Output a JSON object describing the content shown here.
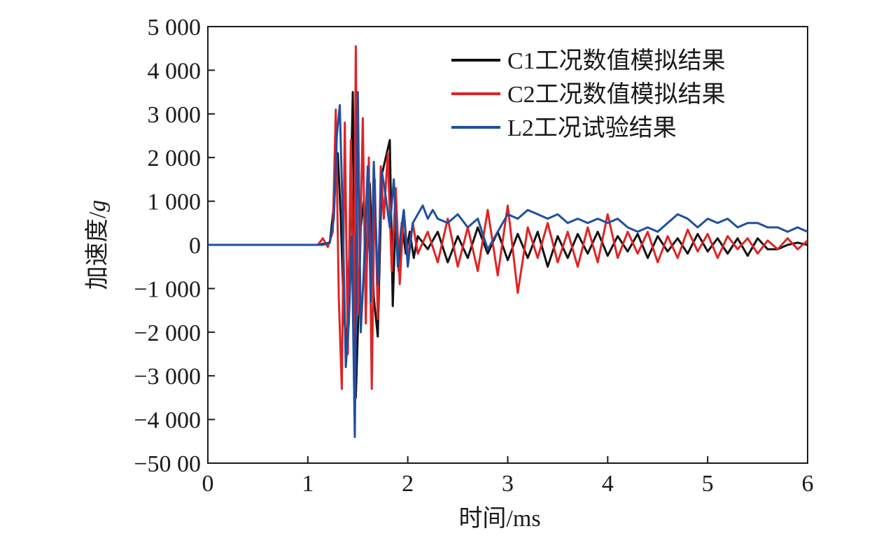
{
  "chart_data": {
    "type": "line",
    "title": "",
    "xlabel": "时间/ms",
    "ylabel_main": "加速度/",
    "ylabel_unit": "g",
    "xlim": [
      0,
      6
    ],
    "ylim": [
      -5000,
      5000
    ],
    "x_ticks": [
      0,
      1,
      2,
      3,
      4,
      5,
      6
    ],
    "x_tick_labels": [
      "0",
      "1",
      "2",
      "3",
      "4",
      "5",
      "6"
    ],
    "y_ticks": [
      5000,
      4000,
      3000,
      2000,
      1000,
      0,
      -1000,
      -2000,
      -3000,
      -4000,
      -5000
    ],
    "y_tick_labels": [
      "5 000",
      "4 000",
      "3 000",
      "2 000",
      "1 000",
      "0",
      "−1 000",
      "−2 000",
      "−3 000",
      "−4 000",
      "−50 00"
    ],
    "grid": false,
    "legend_position": "top-right",
    "series": [
      {
        "name": "C1工况数值模拟结果",
        "color": "#111111",
        "x": [
          0,
          1.1,
          1.22,
          1.26,
          1.3,
          1.33,
          1.36,
          1.39,
          1.42,
          1.45,
          1.48,
          1.5,
          1.53,
          1.56,
          1.59,
          1.62,
          1.66,
          1.7,
          1.74,
          1.78,
          1.82,
          1.85,
          1.88,
          1.91,
          1.94,
          1.98,
          2.02,
          2.06,
          2.1,
          2.2,
          2.3,
          2.4,
          2.5,
          2.6,
          2.7,
          2.8,
          2.9,
          3.0,
          3.1,
          3.2,
          3.3,
          3.4,
          3.5,
          3.6,
          3.7,
          3.8,
          3.9,
          4.0,
          4.1,
          4.2,
          4.3,
          4.4,
          4.5,
          4.6,
          4.7,
          4.8,
          4.9,
          5.0,
          5.1,
          5.2,
          5.3,
          5.4,
          5.5,
          5.6,
          5.7,
          5.8,
          5.9,
          6.0
        ],
        "y": [
          0,
          0,
          50,
          900,
          2100,
          600,
          -1600,
          -2300,
          200,
          3500,
          -3500,
          -2000,
          400,
          1000,
          -400,
          1400,
          -1200,
          -2100,
          1600,
          2000,
          2400,
          -1400,
          800,
          -600,
          500,
          -200,
          300,
          -300,
          200,
          -100,
          300,
          -400,
          200,
          -300,
          400,
          -200,
          300,
          -350,
          250,
          -300,
          300,
          -500,
          200,
          -300,
          250,
          -200,
          300,
          -250,
          200,
          -150,
          250,
          -300,
          200,
          -150,
          150,
          -200,
          250,
          -150,
          150,
          -200,
          150,
          -250,
          150,
          -100,
          -100,
          0,
          50,
          0
        ]
      },
      {
        "name": "C2工况数值模拟结果",
        "color": "#e02424",
        "x": [
          0,
          1.1,
          1.15,
          1.2,
          1.25,
          1.28,
          1.31,
          1.34,
          1.37,
          1.4,
          1.43,
          1.46,
          1.48,
          1.5,
          1.52,
          1.55,
          1.58,
          1.61,
          1.64,
          1.67,
          1.7,
          1.73,
          1.76,
          1.8,
          1.84,
          1.88,
          1.92,
          1.96,
          2.0,
          2.05,
          2.1,
          2.2,
          2.3,
          2.4,
          2.5,
          2.6,
          2.7,
          2.8,
          2.9,
          3.0,
          3.1,
          3.2,
          3.3,
          3.4,
          3.5,
          3.6,
          3.7,
          3.8,
          3.9,
          4.0,
          4.1,
          4.2,
          4.3,
          4.4,
          4.5,
          4.6,
          4.7,
          4.8,
          4.9,
          5.0,
          5.1,
          5.2,
          5.3,
          5.4,
          5.5,
          5.6,
          5.7,
          5.8,
          5.9,
          6.0
        ],
        "y": [
          0,
          0,
          150,
          -50,
          300,
          3100,
          -1200,
          -3300,
          2800,
          -2500,
          2400,
          -2300,
          4550,
          -1600,
          -400,
          2900,
          -1800,
          2000,
          -3300,
          1500,
          -1700,
          1800,
          600,
          2100,
          -600,
          1300,
          -900,
          800,
          -300,
          500,
          -200,
          300,
          -400,
          600,
          -500,
          400,
          -600,
          800,
          -700,
          900,
          -1100,
          400,
          -300,
          500,
          -400,
          300,
          -500,
          400,
          -400,
          700,
          -300,
          300,
          -200,
          300,
          -400,
          200,
          -300,
          350,
          -150,
          250,
          -300,
          200,
          -100,
          150,
          -200,
          100,
          -100,
          150,
          -100,
          100
        ]
      },
      {
        "name": "L2工况试验结果",
        "color": "#1f4fa0",
        "x": [
          0,
          1.15,
          1.22,
          1.26,
          1.29,
          1.32,
          1.35,
          1.38,
          1.41,
          1.44,
          1.47,
          1.5,
          1.53,
          1.56,
          1.6,
          1.63,
          1.66,
          1.7,
          1.74,
          1.78,
          1.82,
          1.86,
          1.9,
          1.93,
          1.96,
          2.0,
          2.05,
          2.1,
          2.15,
          2.2,
          2.25,
          2.3,
          2.4,
          2.5,
          2.6,
          2.7,
          2.8,
          2.85,
          2.9,
          3.0,
          3.1,
          3.2,
          3.3,
          3.4,
          3.5,
          3.6,
          3.7,
          3.8,
          3.9,
          4.0,
          4.1,
          4.2,
          4.3,
          4.4,
          4.5,
          4.6,
          4.7,
          4.8,
          4.9,
          5.0,
          5.1,
          5.2,
          5.3,
          5.4,
          5.5,
          5.6,
          5.7,
          5.8,
          5.9,
          6.0
        ],
        "y": [
          0,
          0,
          50,
          600,
          2500,
          3200,
          600,
          -2800,
          -1800,
          200,
          -4400,
          3500,
          -2000,
          -600,
          1800,
          -1300,
          1900,
          -900,
          1700,
          1100,
          400,
          1500,
          -500,
          300,
          800,
          -500,
          500,
          700,
          900,
          600,
          800,
          600,
          500,
          700,
          400,
          600,
          -100,
          100,
          300,
          700,
          600,
          800,
          700,
          600,
          700,
          500,
          600,
          500,
          600,
          500,
          600,
          400,
          300,
          400,
          300,
          500,
          700,
          600,
          400,
          600,
          500,
          600,
          400,
          500,
          500,
          400,
          400,
          300,
          400,
          300
        ]
      }
    ]
  }
}
